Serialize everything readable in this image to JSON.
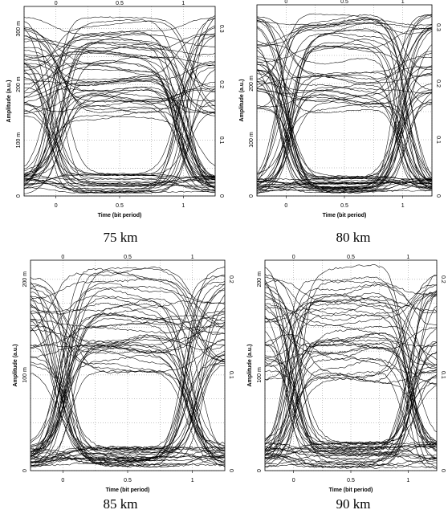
{
  "chart_data": [
    {
      "type": "line",
      "title": "",
      "caption": "75 km",
      "xlabel": "Time (bit period)",
      "ylabel": "Amplitude (a.u.)",
      "xlim": [
        -0.25,
        1.25
      ],
      "ylim": [
        0,
        0.34
      ],
      "x_ticks": [
        0,
        0.5,
        1
      ],
      "x_tick_labels": [
        "0",
        "0.5",
        "1"
      ],
      "y_ticks_left": [
        0,
        0.1,
        0.2,
        0.3
      ],
      "y_tick_labels_left": [
        "0",
        "100 m",
        "200 m",
        "300 m"
      ],
      "y_ticks_right": [
        0,
        0.1,
        0.2,
        0.3
      ],
      "y_tick_labels_right": [
        "0",
        "0.1",
        "0.2",
        "0.3"
      ],
      "grid": true,
      "eye": {
        "one_level_range": [
          0.14,
          0.33
        ],
        "zero_level_range": [
          0.005,
          0.04
        ],
        "crossing_times": [
          0.0,
          1.0
        ],
        "eye_center": 0.5
      },
      "trace_count": 70
    },
    {
      "type": "line",
      "title": "",
      "caption": "80 km",
      "xlabel": "Time (bit period)",
      "ylabel": "Amplitude (a.u.)",
      "xlim": [
        -0.25,
        1.25
      ],
      "ylim": [
        0,
        0.34
      ],
      "x_ticks": [
        0,
        0.5,
        1
      ],
      "x_tick_labels": [
        "0",
        "0.5",
        "1"
      ],
      "y_ticks_left": [
        0,
        0.1,
        0.2
      ],
      "y_tick_labels_left": [
        "0",
        "100 m",
        "200 m"
      ],
      "y_ticks_right": [
        0,
        0.1,
        0.2,
        0.3
      ],
      "y_tick_labels_right": [
        "0",
        "0.1",
        "0.2",
        "0.3"
      ],
      "grid": true,
      "eye": {
        "one_level_range": [
          0.15,
          0.33
        ],
        "zero_level_range": [
          0.005,
          0.035
        ],
        "crossing_times": [
          0.0,
          1.0
        ],
        "eye_center": 0.5
      },
      "trace_count": 70
    },
    {
      "type": "line",
      "title": "",
      "caption": "85 km",
      "xlabel": "Time (bit period)",
      "ylabel": "Amplitude (a.u.)",
      "xlim": [
        -0.25,
        1.25
      ],
      "ylim": [
        0,
        0.22
      ],
      "x_ticks": [
        0,
        0.5,
        1
      ],
      "x_tick_labels": [
        "0",
        "0.5",
        "1"
      ],
      "y_ticks_left": [
        0,
        0.1,
        0.2
      ],
      "y_tick_labels_left": [
        "0",
        "100 m",
        "200 m"
      ],
      "y_ticks_right": [
        0,
        0.1,
        0.2
      ],
      "y_tick_labels_right": [
        "0",
        "0.1",
        "0.2"
      ],
      "grid": true,
      "eye": {
        "one_level_range": [
          0.1,
          0.215
        ],
        "zero_level_range": [
          0.003,
          0.025
        ],
        "crossing_times": [
          0.0,
          1.0
        ],
        "eye_center": 0.5
      },
      "trace_count": 70
    },
    {
      "type": "line",
      "title": "",
      "caption": "90 km",
      "xlabel": "Time (bit period)",
      "ylabel": "Amplitude (a.u.)",
      "xlim": [
        -0.25,
        1.25
      ],
      "ylim": [
        0,
        0.22
      ],
      "x_ticks": [
        0,
        0.5,
        1
      ],
      "x_tick_labels": [
        "0",
        "0.5",
        "1"
      ],
      "y_ticks_left": [
        0,
        0.1,
        0.2
      ],
      "y_tick_labels_left": [
        "0",
        "100 m",
        "200 m"
      ],
      "y_ticks_right": [
        0,
        0.1,
        0.2
      ],
      "y_tick_labels_right": [
        "0",
        "0.1",
        "0.2"
      ],
      "grid": true,
      "eye": {
        "one_level_range": [
          0.09,
          0.215
        ],
        "zero_level_range": [
          0.003,
          0.03
        ],
        "crossing_times": [
          0.0,
          1.0
        ],
        "eye_center": 0.55
      },
      "trace_count": 70
    }
  ]
}
